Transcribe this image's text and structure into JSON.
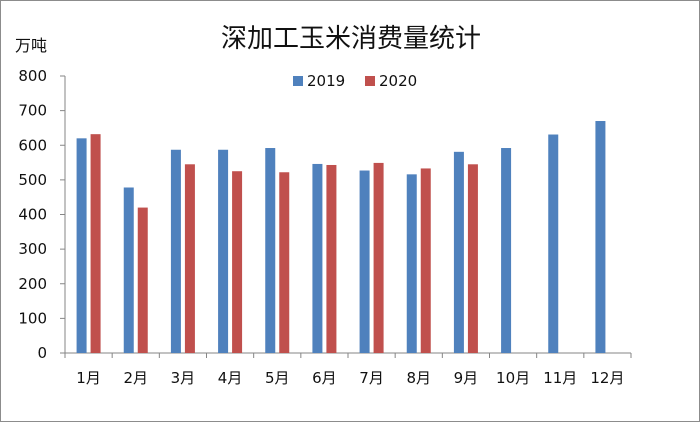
{
  "chart_data": {
    "type": "bar",
    "title": "深加工玉米消费量统计",
    "ylabel": "万吨",
    "xlabel": "",
    "ylim": [
      0,
      800
    ],
    "yticks": [
      0,
      100,
      200,
      300,
      400,
      500,
      600,
      700,
      800
    ],
    "categories": [
      "1月",
      "2月",
      "3月",
      "4月",
      "5月",
      "6月",
      "7月",
      "8月",
      "9月",
      "10月",
      "11月",
      "12月"
    ],
    "series": [
      {
        "name": "2019",
        "color": "#4f81bd",
        "values": [
          620,
          478,
          587,
          587,
          592,
          546,
          527,
          516,
          581,
          592,
          631,
          670
        ]
      },
      {
        "name": "2020",
        "color": "#c0504d",
        "values": [
          632,
          420,
          545,
          525,
          522,
          543,
          549,
          533,
          545,
          null,
          null,
          null
        ]
      }
    ],
    "legend_position": "top-center",
    "grid": false
  }
}
